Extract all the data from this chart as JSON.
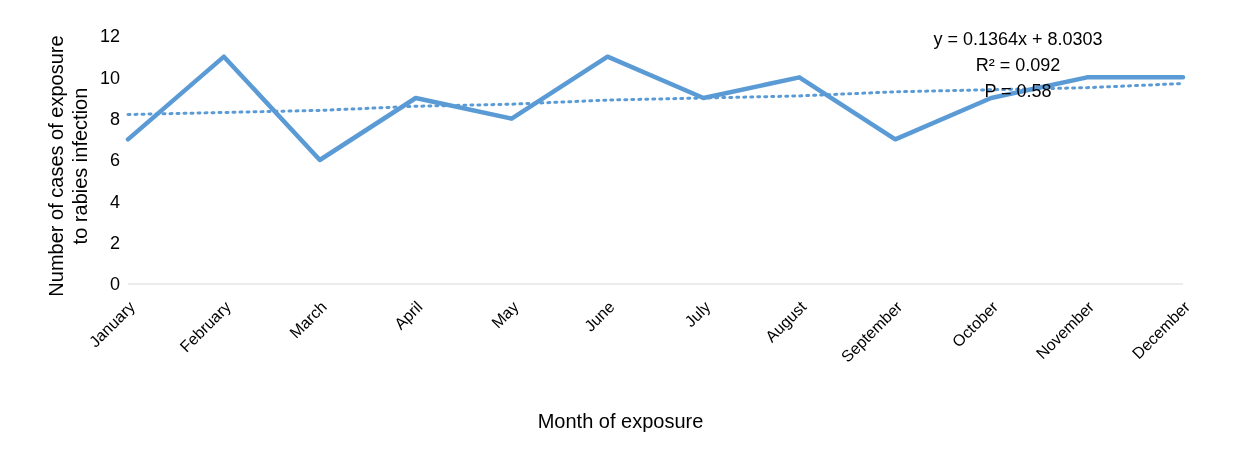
{
  "chart_data": {
    "type": "line",
    "xlabel": "Month of exposure",
    "ylabel": "Number of cases of exposure to rabies infection",
    "categories": [
      "January",
      "February",
      "March",
      "April",
      "May",
      "June",
      "July",
      "August",
      "September",
      "October",
      "November",
      "December"
    ],
    "series": [
      {
        "color": "#5b9bd5",
        "values": [
          7,
          11,
          6,
          9,
          8,
          11,
          9,
          10,
          7,
          9,
          10,
          10
        ],
        "line_style": "solid"
      },
      {
        "color": "#5b9bd5",
        "values": [
          8.2,
          8.3,
          8.4,
          8.6,
          8.7,
          8.9,
          9.0,
          9.1,
          9.3,
          9.4,
          9.5,
          9.7
        ],
        "line_style": "dotted"
      }
    ],
    "ylim": [
      0,
      12
    ],
    "yticks": [
      0,
      2,
      4,
      6,
      8,
      10,
      12
    ],
    "marker": "none",
    "annotations": [
      "y = 0.1364x + 8.0303",
      "R² = 0.092",
      "P = 0.58"
    ]
  }
}
